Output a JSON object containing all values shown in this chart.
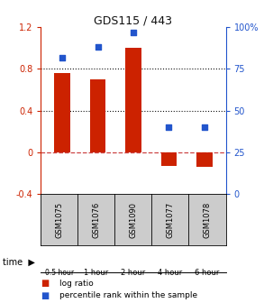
{
  "title": "GDS115 / 443",
  "samples": [
    "GSM1075",
    "GSM1076",
    "GSM1090",
    "GSM1077",
    "GSM1078"
  ],
  "time_labels": [
    "0.5 hour",
    "1 hour",
    "2 hour",
    "4 hour",
    "6 hour"
  ],
  "time_colors": [
    "#ccffcc",
    "#88dd88",
    "#88dd88",
    "#44bb44",
    "#33aa33"
  ],
  "log_ratios": [
    0.76,
    0.7,
    1.0,
    -0.13,
    -0.14
  ],
  "percentile_ranks": [
    82,
    88,
    97,
    40,
    40
  ],
  "bar_color": "#cc2200",
  "dot_color": "#2255cc",
  "ylim_left": [
    -0.4,
    1.2
  ],
  "ylim_right": [
    0,
    100
  ],
  "yticks_left": [
    -0.4,
    0.0,
    0.4,
    0.8,
    1.2
  ],
  "ytick_labels_left": [
    "-0.4",
    "0",
    "0.4",
    "0.8",
    "1.2"
  ],
  "yticks_right": [
    0,
    25,
    50,
    75,
    100
  ],
  "ytick_labels_right": [
    "0",
    "25",
    "50",
    "75",
    "100%"
  ],
  "hlines_dotted": [
    0.4,
    0.8
  ],
  "zero_line_color": "#cc4444",
  "dot_line_color": "#111111",
  "background_color": "#ffffff",
  "gsm_bg": "#cccccc",
  "bar_width": 0.45
}
